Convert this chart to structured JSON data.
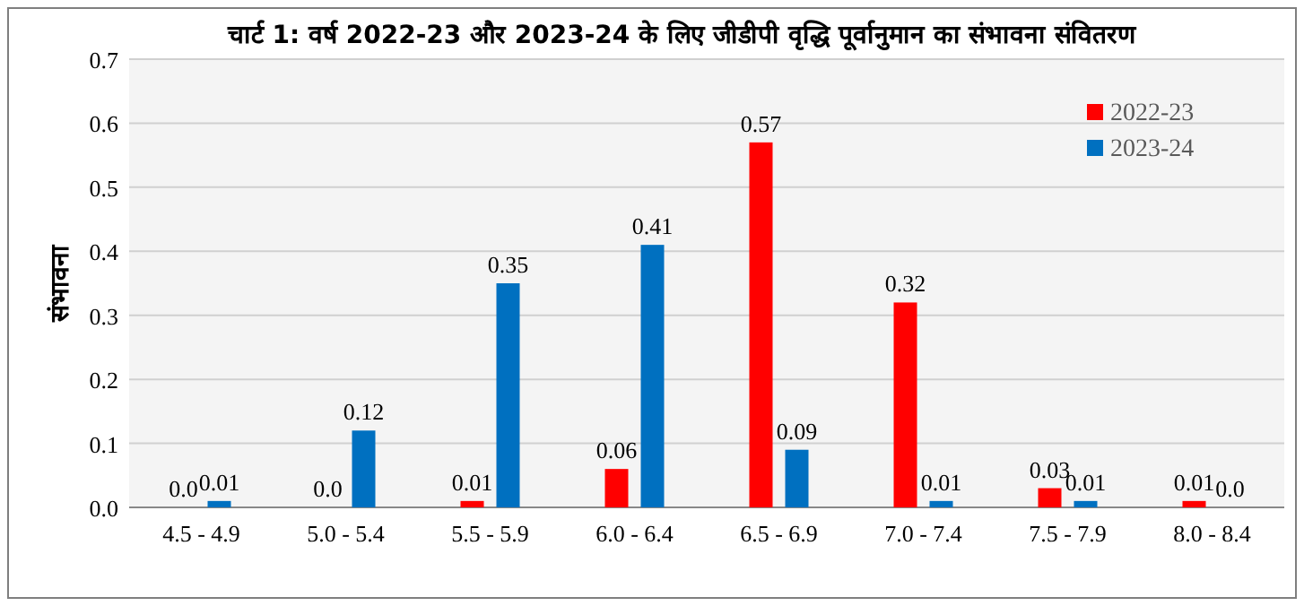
{
  "chart_data": {
    "type": "bar",
    "title": "चार्ट 1: वर्ष 2022-23 और 2023-24 के लिए जीडीपी वृद्धि पूर्वानुमान का संभावना संवितरण",
    "ylabel": "संभावना",
    "categories": [
      "4.5 - 4.9",
      "5.0 - 5.4",
      "5.5 - 5.9",
      "6.0 - 6.4",
      "6.5 - 6.9",
      "7.0 - 7.4",
      "7.5 - 7.9",
      "8.0 - 8.4"
    ],
    "series": [
      {
        "name": "2022-23",
        "color": "#ff0000",
        "values": [
          0,
          0,
          0.01,
          0.06,
          0.57,
          0.32,
          0.03,
          0.01
        ],
        "value_labels": [
          "0.0",
          "0.0",
          "0.01",
          "0.06",
          "0.57",
          "0.32",
          "0.03",
          "0.01"
        ]
      },
      {
        "name": "2023-24",
        "color": "#0070c0",
        "values": [
          0.01,
          0.12,
          0.35,
          0.41,
          0.09,
          0.01,
          0.01,
          0
        ],
        "value_labels": [
          "0.01",
          "0.12",
          "0.35",
          "0.41",
          "0.09",
          "0.01",
          "0.01",
          "0.0"
        ]
      }
    ],
    "ylim": [
      0,
      0.7
    ],
    "yticks": [
      {
        "value": 0,
        "label": "0.0"
      },
      {
        "value": 0.1,
        "label": "0.1"
      },
      {
        "value": 0.2,
        "label": "0.2"
      },
      {
        "value": 0.3,
        "label": "0.3"
      },
      {
        "value": 0.4,
        "label": "0.4"
      },
      {
        "value": 0.5,
        "label": "0.5"
      },
      {
        "value": 0.6,
        "label": "0.6"
      },
      {
        "value": 0.7,
        "label": "0.7"
      }
    ],
    "grid": "y",
    "legend": "top right"
  }
}
